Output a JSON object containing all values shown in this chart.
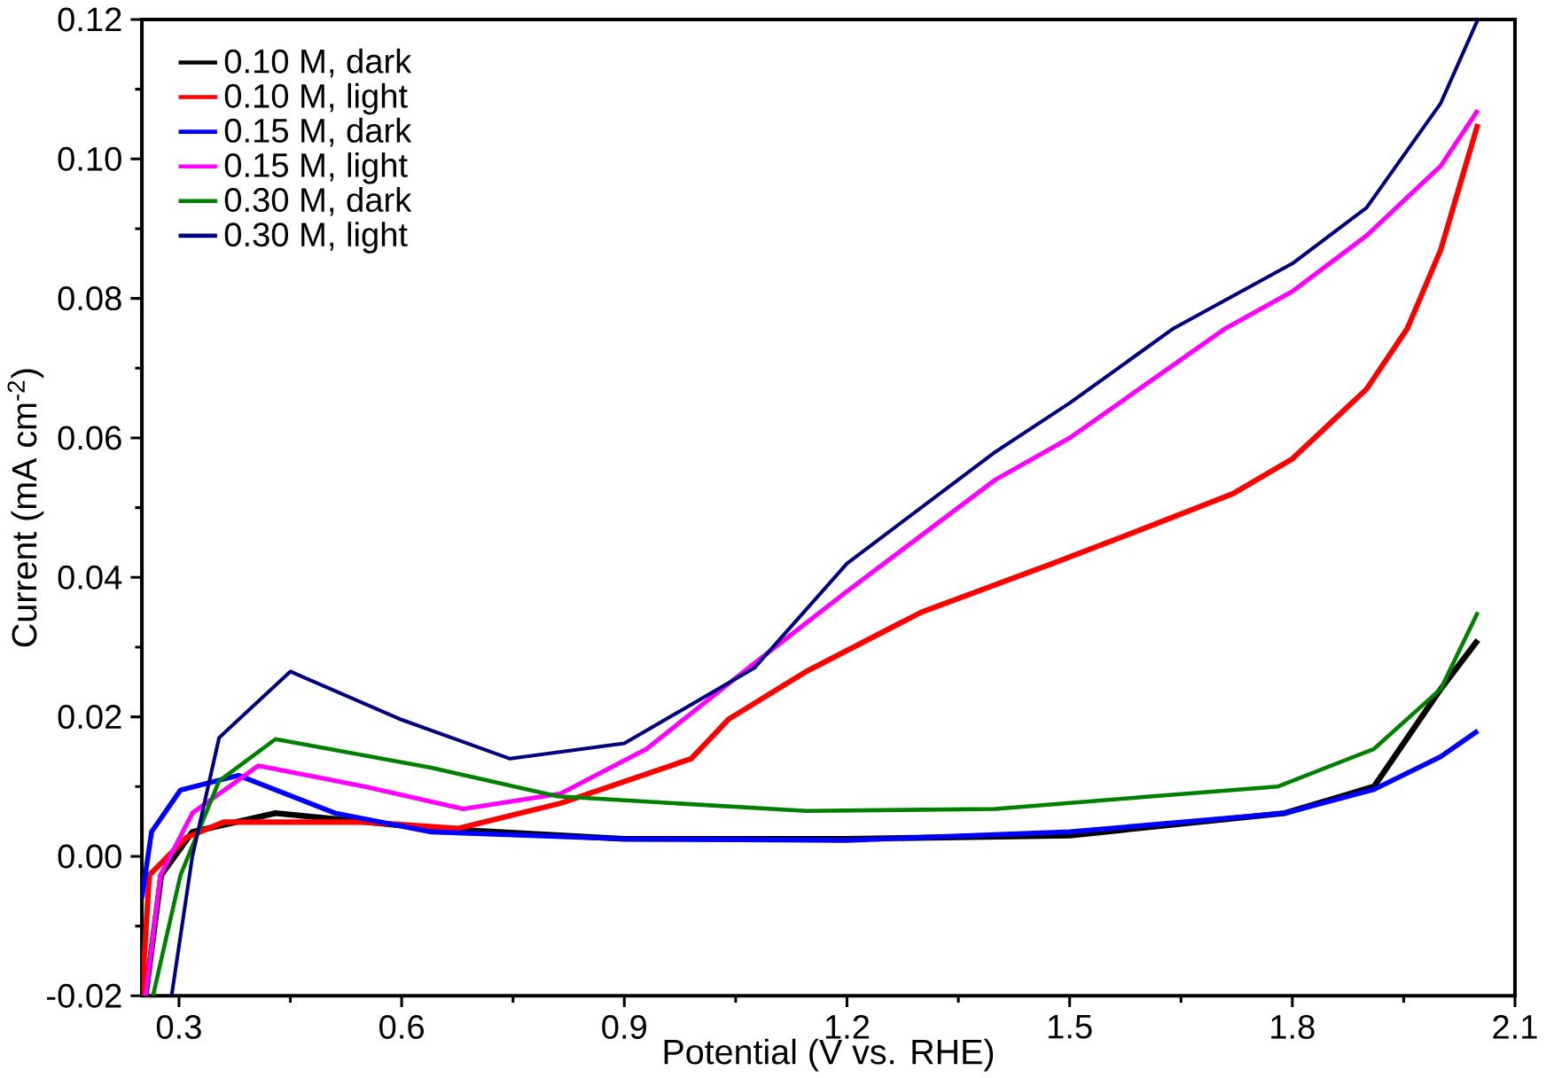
{
  "chart_data": {
    "type": "line",
    "xlabel": "Potential (V vs. RHE)",
    "ylabel": "Current (mA cm$^{-2}$)",
    "xlim": [
      0.25,
      2.1
    ],
    "ylim": [
      -0.02,
      0.12
    ],
    "xticks": [
      0.3,
      0.6,
      0.9,
      1.2,
      1.5,
      1.8,
      2.1
    ],
    "yticks": [
      {
        "value": -0.02,
        "label": "-0.02"
      },
      {
        "value": 0,
        "label": "0.00"
      },
      {
        "value": 0.02,
        "label": "0.02"
      },
      {
        "value": 0.04,
        "label": "0.04"
      },
      {
        "value": 0.06,
        "label": "0.06"
      },
      {
        "value": 0.08,
        "label": "0.08"
      },
      {
        "value": 0.1,
        "label": "0.10"
      },
      {
        "value": 0.12,
        "label": "0.12"
      }
    ],
    "grid": false,
    "legend": "top left",
    "marker": "none",
    "line_style": "solid",
    "series": [
      {
        "name": "0.10 M, dark",
        "color": "#000000",
        "x": [
          0.255,
          0.276,
          0.318,
          0.43,
          0.64,
          0.9,
          1.2,
          1.5,
          1.79,
          1.91,
          2.0,
          2.05
        ],
        "values": [
          -0.02,
          -0.0027,
          0.0035,
          0.0062,
          0.004,
          0.0025,
          0.0025,
          0.003,
          0.0062,
          0.01,
          0.024,
          0.031
        ]
      },
      {
        "name": "0.10 M, light",
        "color": "#ff0000",
        "x": [
          0.25,
          0.26,
          0.31,
          0.36,
          0.55,
          0.676,
          0.814,
          0.99,
          1.041,
          1.145,
          1.3,
          1.477,
          1.6,
          1.72,
          1.8,
          1.9,
          1.955,
          2.0,
          2.05
        ],
        "values": [
          -0.02,
          -0.0027,
          0.0027,
          0.0049,
          0.0049,
          0.004,
          0.0076,
          0.014,
          0.0197,
          0.0265,
          0.035,
          0.042,
          0.047,
          0.052,
          0.057,
          0.067,
          0.0757,
          0.087,
          0.105
        ]
      },
      {
        "name": "0.15 M, dark",
        "color": "#0000ff",
        "x": [
          0.25,
          0.263,
          0.302,
          0.38,
          0.51,
          0.64,
          0.9,
          1.2,
          1.5,
          1.79,
          1.91,
          2.0,
          2.05
        ],
        "values": [
          -0.006,
          0.0035,
          0.0095,
          0.0116,
          0.0062,
          0.0035,
          0.0025,
          0.0023,
          0.0035,
          0.0062,
          0.0096,
          0.0143,
          0.018
        ]
      },
      {
        "name": "0.15 M, light",
        "color": "#ff00ff",
        "x": [
          0.255,
          0.275,
          0.318,
          0.407,
          0.55,
          0.683,
          0.814,
          0.93,
          1.067,
          1.2,
          1.4,
          1.5,
          1.71,
          1.8,
          1.9,
          2.0,
          2.05
        ],
        "values": [
          -0.02,
          -0.0027,
          0.0062,
          0.013,
          0.01,
          0.0068,
          0.009,
          0.0154,
          0.027,
          0.038,
          0.054,
          0.06,
          0.0757,
          0.081,
          0.089,
          0.099,
          0.107
        ]
      },
      {
        "name": "0.30 M, dark",
        "color": "#008000",
        "x": [
          0.265,
          0.302,
          0.354,
          0.43,
          0.64,
          0.81,
          1.145,
          1.4,
          1.6,
          1.78,
          1.91,
          2.0,
          2.05
        ],
        "values": [
          -0.02,
          -0.0027,
          0.0108,
          0.0168,
          0.0127,
          0.0086,
          0.0065,
          0.0068,
          0.0085,
          0.01,
          0.0154,
          0.024,
          0.035
        ]
      },
      {
        "name": "0.30 M, light",
        "color": "#000080",
        "x": [
          0.29,
          0.318,
          0.354,
          0.45,
          0.597,
          0.746,
          0.9,
          1.075,
          1.2,
          1.4,
          1.5,
          1.64,
          1.8,
          1.9,
          2.0,
          2.05
        ],
        "values": [
          -0.02,
          0,
          0.017,
          0.0265,
          0.0197,
          0.014,
          0.0162,
          0.027,
          0.042,
          0.058,
          0.065,
          0.0757,
          0.085,
          0.093,
          0.108,
          0.12
        ]
      }
    ]
  }
}
